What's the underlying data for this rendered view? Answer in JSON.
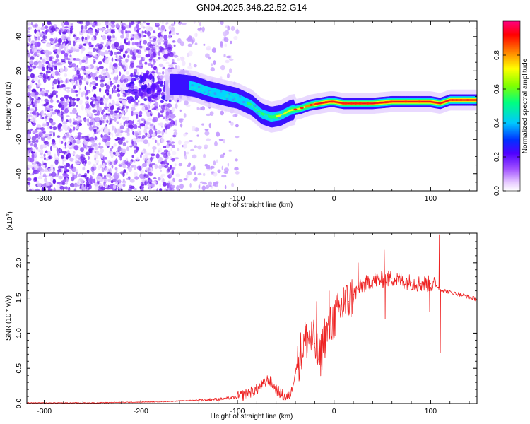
{
  "title": "GN04.2025.346.22.52.G14",
  "chart_data": [
    {
      "type": "heatmap",
      "title": "GN04.2025.346.22.52.G14",
      "xlabel": "Height of straight line (km)",
      "ylabel": "Frequency (Hz)",
      "xlim": [
        -318,
        148
      ],
      "ylim": [
        -50,
        49
      ],
      "xticks": [
        -300,
        -200,
        -100,
        0,
        100
      ],
      "yticks": [
        -40,
        -20,
        0,
        20,
        40
      ],
      "xtick_labels": [
        "-300",
        "-200",
        "-100",
        "0",
        "100"
      ],
      "ytick_labels": [
        "-40",
        "-20",
        "0",
        "20",
        "40"
      ],
      "colorbar": {
        "label": "Normalized spectral amplitude",
        "range": [
          0,
          1
        ],
        "ticks": [
          0,
          0.2,
          0.4,
          0.6,
          0.8
        ],
        "tick_labels": [
          "0.0",
          "0.2",
          "0.4",
          "0.6",
          "0.8"
        ],
        "colors": [
          "#ffffff",
          "#e6c8ff",
          "#a050ff",
          "#5000ff",
          "#0030ff",
          "#00c8ff",
          "#00ff80",
          "#80ff00",
          "#ffff00",
          "#ff8000",
          "#ff0000",
          "#ff0080"
        ]
      },
      "ridge": {
        "x": [
          -160,
          -145,
          -130,
          -115,
          -100,
          -85,
          -75,
          -65,
          -55,
          -45,
          -35,
          -25,
          -15,
          -5,
          0,
          10,
          20,
          40,
          60,
          80,
          100,
          110,
          120,
          148
        ],
        "frequency": [
          12,
          11,
          8,
          6,
          4,
          0,
          -5,
          -7,
          -6,
          -3,
          -2,
          0,
          1,
          2,
          2,
          1,
          1,
          1,
          2,
          2,
          2,
          1,
          3,
          3
        ]
      },
      "noise_regions": [
        {
          "x_range": [
            -318,
            -215
          ],
          "density": "dense"
        },
        {
          "x_range": [
            -215,
            -165
          ],
          "density": "medium"
        },
        {
          "x_range": [
            -165,
            -100
          ],
          "density": "sparse"
        }
      ]
    },
    {
      "type": "line",
      "xlabel": "Height of straight line (km)",
      "ylabel": "SNR (10 * v/v)",
      "y_scale_label": "(x10",
      "y_scale_exponent": "4",
      "y_scale_suffix": ")",
      "xlim": [
        -318,
        148
      ],
      "ylim": [
        0,
        2.42
      ],
      "xticks": [
        -300,
        -200,
        -100,
        0,
        100
      ],
      "yticks": [
        0,
        0.5,
        1.0,
        1.5,
        2.0
      ],
      "xtick_labels": [
        "-300",
        "-200",
        "-100",
        "0",
        "100"
      ],
      "ytick_labels": [
        "0.0",
        "0.5",
        "1.0",
        "1.5",
        "2.0"
      ],
      "series": [
        {
          "name": "SNR",
          "color": "#ee2222",
          "x": [
            -318,
            -250,
            -200,
            -170,
            -140,
            -120,
            -100,
            -90,
            -80,
            -72,
            -68,
            -60,
            -50,
            -45,
            -40,
            -35,
            -30,
            -25,
            -20,
            -15,
            -10,
            -5,
            0,
            5,
            10,
            15,
            20,
            25,
            30,
            40,
            50,
            60,
            70,
            80,
            90,
            100,
            105,
            108,
            110,
            115,
            130,
            148
          ],
          "values": [
            0.01,
            0.01,
            0.02,
            0.03,
            0.05,
            0.06,
            0.09,
            0.14,
            0.2,
            0.28,
            0.35,
            0.2,
            0.08,
            0.12,
            0.45,
            0.7,
            0.9,
            0.95,
            0.85,
            0.6,
            0.95,
            1.05,
            1.2,
            1.3,
            1.4,
            1.45,
            1.55,
            1.62,
            1.68,
            1.75,
            1.76,
            1.78,
            1.75,
            1.72,
            1.7,
            1.7,
            1.68,
            1.65,
            1.62,
            1.6,
            1.55,
            1.48
          ],
          "spikes": [
            {
              "x": -18,
              "value": 1.45
            },
            {
              "x": -5,
              "value": 1.6
            },
            {
              "x": 10,
              "value": 1.65
            },
            {
              "x": 25,
              "value": 2.0
            },
            {
              "x": 52,
              "value": 2.18
            },
            {
              "x": 53,
              "value": 1.2
            },
            {
              "x": 99,
              "value": 1.3
            },
            {
              "x": 109,
              "value": 2.4
            },
            {
              "x": 110,
              "value": 0.72
            }
          ]
        }
      ]
    }
  ]
}
